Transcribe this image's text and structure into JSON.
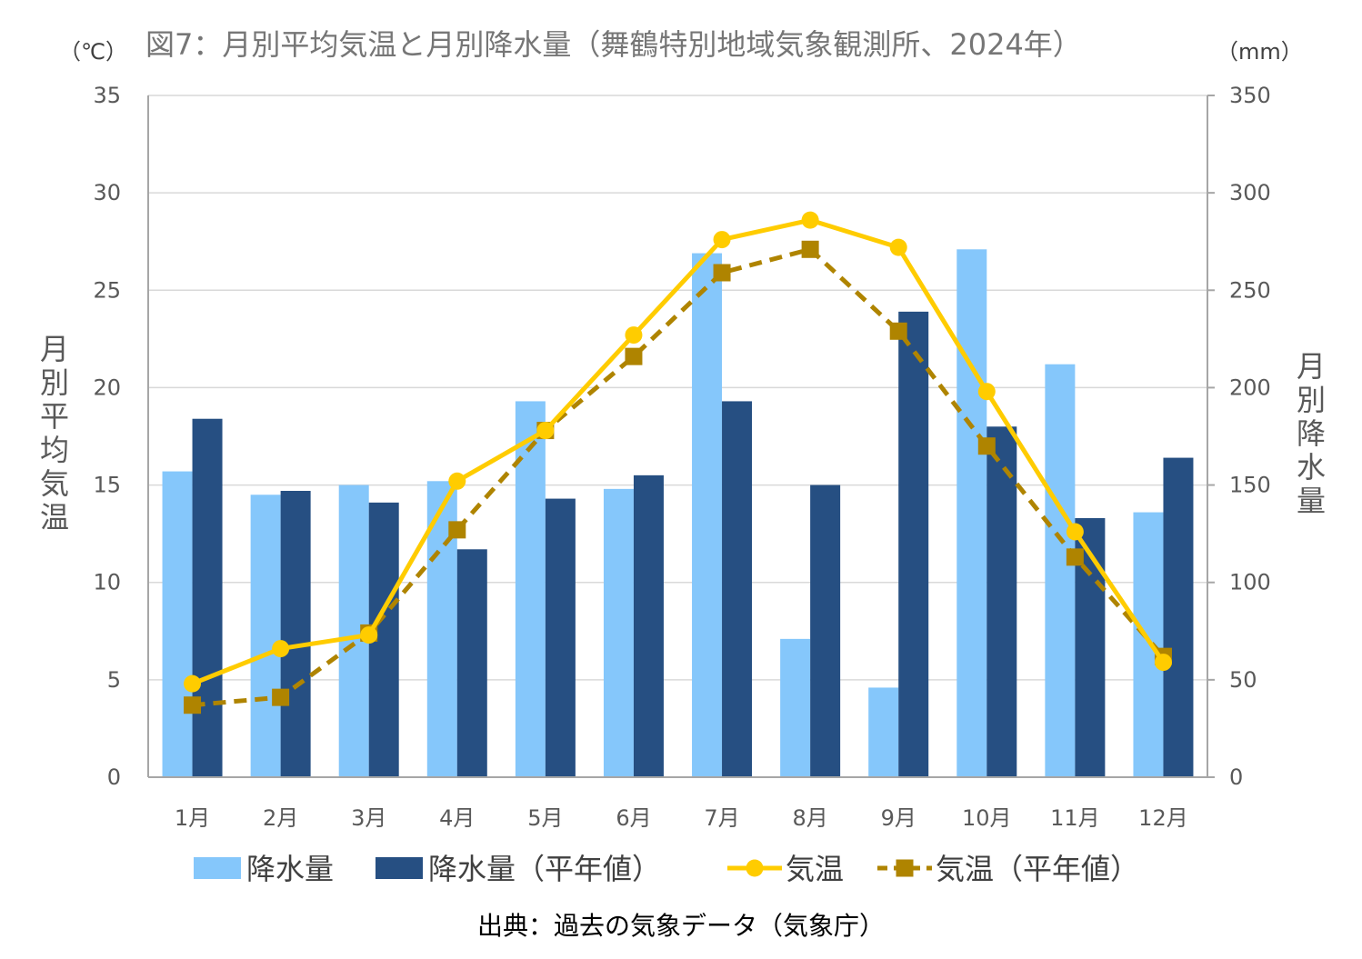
{
  "chart_data": {
    "type": "bar",
    "title": "図7：月別平均気温と月別降水量（舞鶴特別地域気象観測所、2024年）",
    "left_unit": "（℃）",
    "right_unit": "（mm）",
    "ylabel_left": "月別平均気温",
    "ylabel_right": "月別降水量",
    "categories": [
      "1月",
      "2月",
      "3月",
      "4月",
      "5月",
      "6月",
      "7月",
      "8月",
      "9月",
      "10月",
      "11月",
      "12月"
    ],
    "y_left_range": [
      0,
      35
    ],
    "y_right_range": [
      0,
      350
    ],
    "y_left_ticks": [
      "0",
      "5",
      "10",
      "15",
      "20",
      "25",
      "30",
      "35"
    ],
    "y_right_ticks": [
      "0",
      "50",
      "100",
      "150",
      "200",
      "250",
      "300",
      "350"
    ],
    "grid": true,
    "legend_position": "bottom",
    "series": [
      {
        "name": "降水量",
        "type": "bar",
        "axis": "right",
        "color": "#85C7FB",
        "values": [
          157,
          145,
          150,
          152,
          193,
          148,
          269,
          71,
          46,
          271,
          212,
          136
        ]
      },
      {
        "name": "降水量（平年値）",
        "type": "bar",
        "axis": "right",
        "color": "#264F82",
        "values": [
          184,
          147,
          141,
          117,
          143,
          155,
          193,
          150,
          239,
          180,
          133,
          164
        ]
      },
      {
        "name": "気温",
        "type": "line",
        "axis": "left",
        "color": "#FFCC00",
        "marker": "circle",
        "values": [
          4.8,
          6.6,
          7.3,
          15.2,
          17.8,
          22.7,
          27.6,
          28.6,
          27.2,
          19.8,
          12.6,
          5.9
        ]
      },
      {
        "name": "気温（平年値）",
        "type": "line",
        "axis": "left",
        "color": "#AF8400",
        "marker": "square",
        "dashed": true,
        "values": [
          3.7,
          4.1,
          7.4,
          12.7,
          17.8,
          21.6,
          25.9,
          27.1,
          22.9,
          17.0,
          11.3,
          6.2
        ]
      }
    ],
    "source": "出典：過去の気象データ（気象庁）"
  }
}
